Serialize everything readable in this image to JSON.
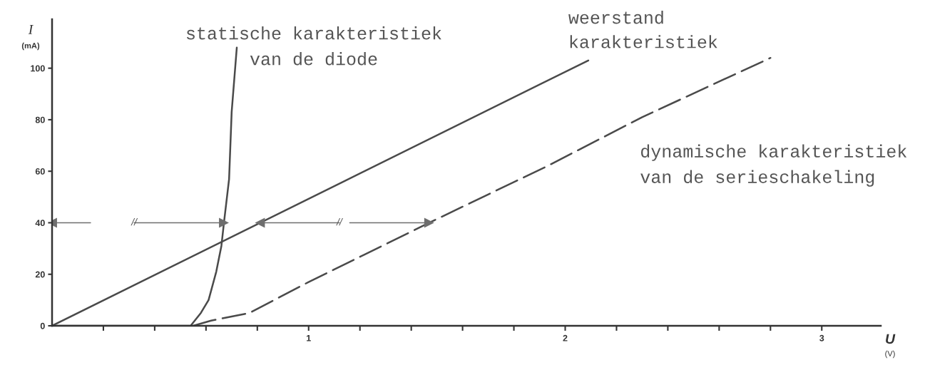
{
  "chart_data": {
    "type": "line",
    "xlabel": "U\n(V)",
    "ylabel": "I\n(mA)",
    "xlim": [
      0,
      3.23
    ],
    "ylim": [
      0,
      119
    ],
    "xticks": [
      {
        "value": 0.2,
        "label": null
      },
      {
        "value": 0.4,
        "label": null
      },
      {
        "value": 0.6,
        "label": null
      },
      {
        "value": 0.8,
        "label": null
      },
      1,
      {
        "value": 1.2,
        "label": null
      },
      {
        "value": 1.4,
        "label": null
      },
      {
        "value": 1.6,
        "label": null
      },
      {
        "value": 1.8,
        "label": null
      },
      2,
      {
        "value": 2.2,
        "label": null
      },
      {
        "value": 2.4,
        "label": null
      },
      {
        "value": 2.6,
        "label": null
      },
      {
        "value": 2.8,
        "label": null
      },
      3
    ],
    "yticks": [
      0,
      20,
      40,
      60,
      80,
      100
    ],
    "series": [
      {
        "name": "statische karakteristiek\nvan de diode",
        "color": "#4a4a4a",
        "x": [
          0,
          0.54,
          0.58,
          0.61,
          0.64,
          0.66,
          0.67,
          0.69,
          0.7,
          0.72
        ],
        "values": [
          0,
          0,
          5,
          10,
          21,
          31,
          40,
          57,
          83,
          108
        ]
      },
      {
        "name": "weerstand\nkarakteristiek",
        "color": "#4a4a4a",
        "x": [
          0,
          2.09
        ],
        "values": [
          0,
          103
        ]
      },
      {
        "name": "dynamische karakteristiek\nvan de serieschakeling",
        "color": "#4a4a4a",
        "line_style": "dashed",
        "x": [
          0.55,
          0.62,
          0.77,
          1.0,
          1.47,
          1.93,
          2.3,
          2.8
        ],
        "values": [
          0,
          2,
          5,
          17,
          40,
          62,
          81,
          104
        ]
      },
      {
        "color": "#6e6e6e",
        "marker": "triangle",
        "x": [
          0.15,
          0
        ],
        "values": [
          40,
          40
        ]
      },
      {
        "color": "#6e6e6e",
        "marker": "triangle",
        "x": [
          0.32,
          0.67
        ],
        "values": [
          40,
          40
        ]
      },
      {
        "color": "#6e6e6e",
        "marker": "triangle",
        "x": [
          1.12,
          0.81
        ],
        "values": [
          40,
          40
        ]
      },
      {
        "color": "#6e6e6e",
        "marker": "triangle",
        "x": [
          1.16,
          1.47
        ],
        "values": [
          40,
          40
        ]
      }
    ],
    "annotations": [
      {
        "text": "//",
        "x": 0.32,
        "y": 40
      },
      {
        "text": "//",
        "x": 1.12,
        "y": 40
      }
    ]
  }
}
